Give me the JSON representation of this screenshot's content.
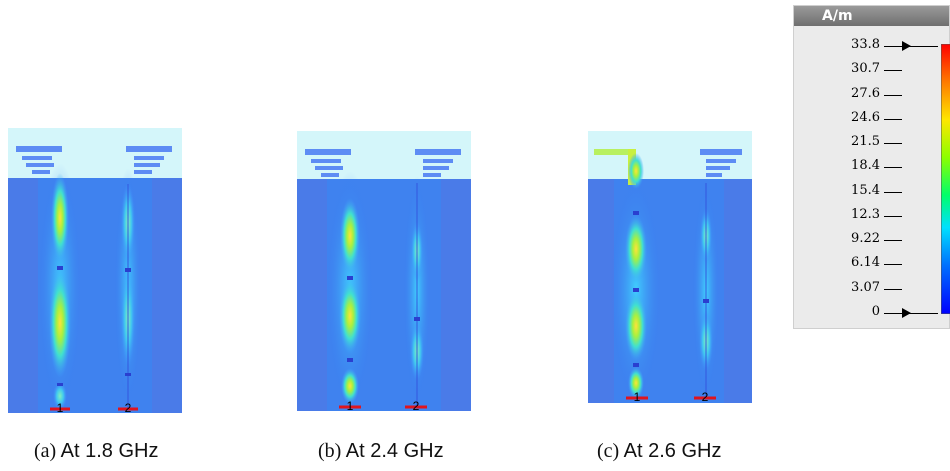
{
  "legend": {
    "unit": "A/m",
    "ticks": [
      "33.8",
      "30.7",
      "27.6",
      "24.6",
      "21.5",
      "18.4",
      "15.4",
      "12.3",
      "9.22",
      "6.14",
      "3.07",
      "0"
    ],
    "colors": [
      "#ff0000",
      "#ff7a00",
      "#ffe600",
      "#8cff00",
      "#00ff6a",
      "#00e0ff",
      "#0070ff",
      "#0000ff"
    ]
  },
  "panels": [
    {
      "label": "(a)",
      "title": "At 1.8 GHz",
      "port1": "1",
      "port2": "2"
    },
    {
      "label": "(b)",
      "title": "At 2.4 GHz",
      "port1": "1",
      "port2": "2"
    },
    {
      "label": "(c)",
      "title": "At 2.6 GHz",
      "port1": "1",
      "port2": "2"
    }
  ]
}
